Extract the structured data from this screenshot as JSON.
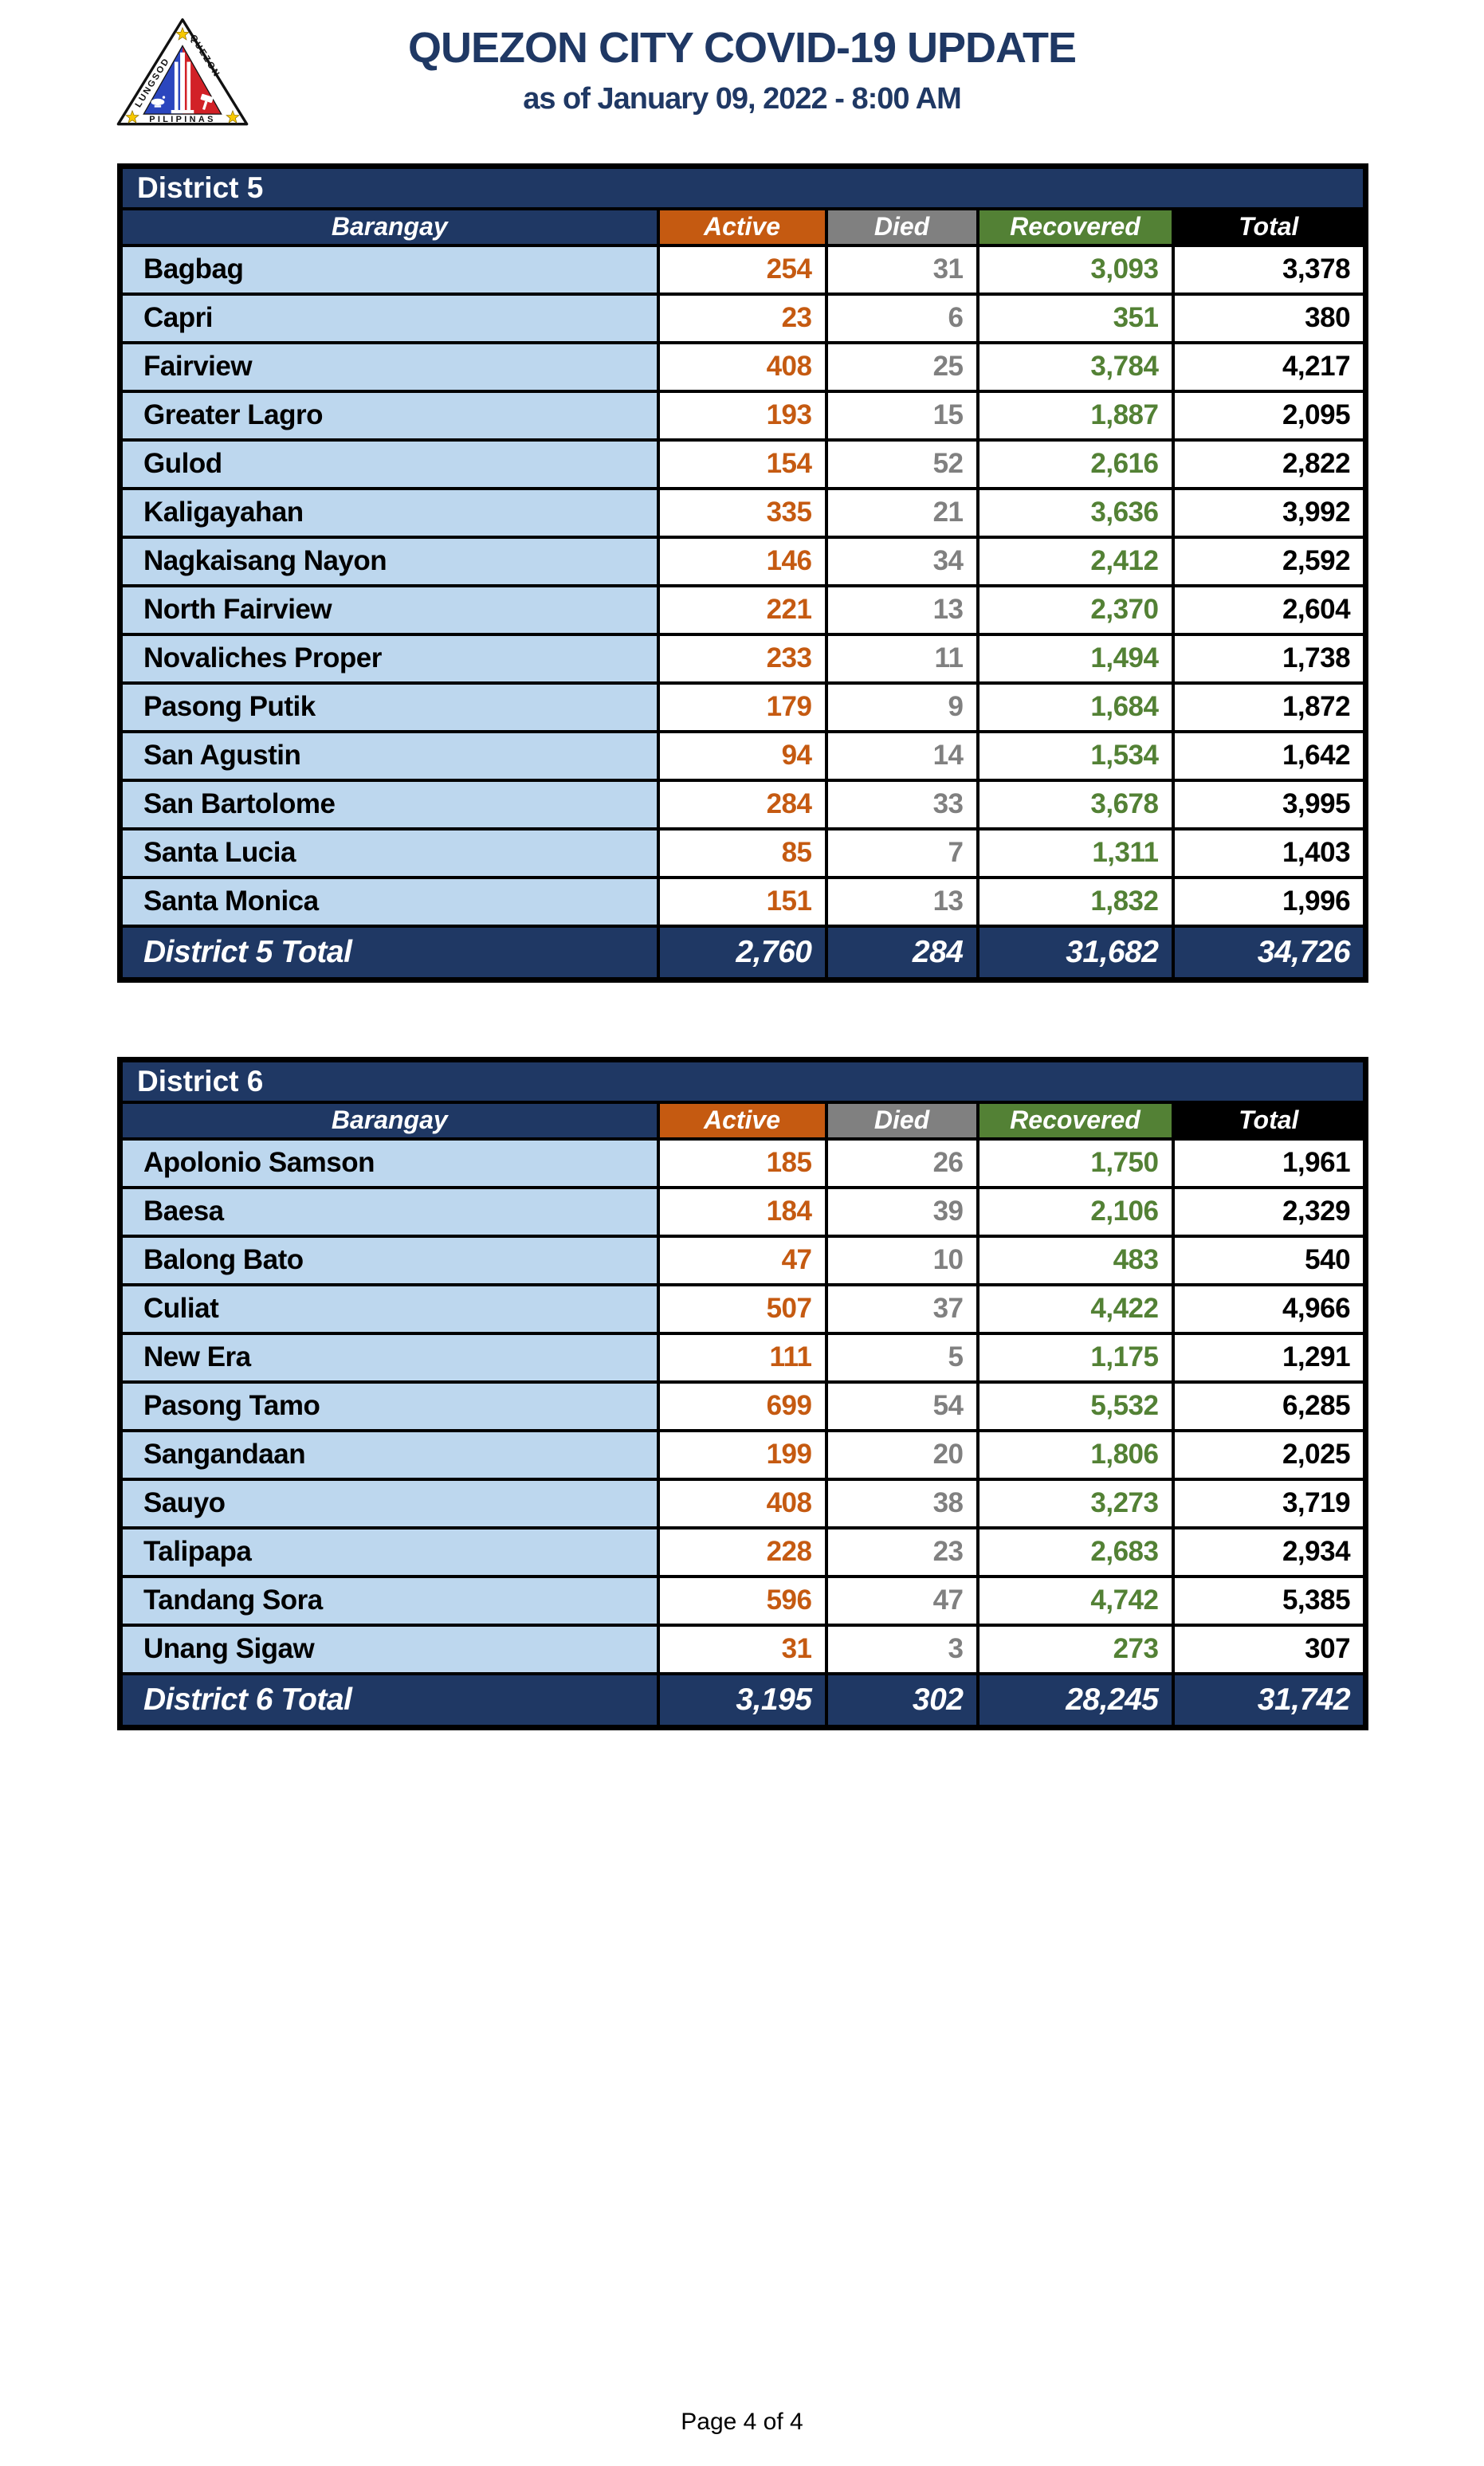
{
  "header": {
    "title": "QUEZON CITY COVID-19 UPDATE",
    "subtitle": "as of January 09, 2022 - 8:00 AM"
  },
  "logo": {
    "label": "Quezon City seal",
    "arc_left": "LUNGSOD",
    "arc_right": "QUEZON",
    "bottom": "PILIPINAS"
  },
  "columns": [
    "Barangay",
    "Active",
    "Died",
    "Recovered",
    "Total"
  ],
  "colors": {
    "navy": "#1F3864",
    "orange": "#C55A11",
    "gray": "#808080",
    "green": "#538135",
    "black": "#000000",
    "light_blue": "#BDD7EE"
  },
  "tables": [
    {
      "district": "District 5",
      "rows": [
        {
          "barangay": "Bagbag",
          "active": "254",
          "died": "31",
          "recovered": "3,093",
          "total": "3,378"
        },
        {
          "barangay": "Capri",
          "active": "23",
          "died": "6",
          "recovered": "351",
          "total": "380"
        },
        {
          "barangay": "Fairview",
          "active": "408",
          "died": "25",
          "recovered": "3,784",
          "total": "4,217"
        },
        {
          "barangay": "Greater Lagro",
          "active": "193",
          "died": "15",
          "recovered": "1,887",
          "total": "2,095"
        },
        {
          "barangay": "Gulod",
          "active": "154",
          "died": "52",
          "recovered": "2,616",
          "total": "2,822"
        },
        {
          "barangay": "Kaligayahan",
          "active": "335",
          "died": "21",
          "recovered": "3,636",
          "total": "3,992"
        },
        {
          "barangay": "Nagkaisang Nayon",
          "active": "146",
          "died": "34",
          "recovered": "2,412",
          "total": "2,592"
        },
        {
          "barangay": "North Fairview",
          "active": "221",
          "died": "13",
          "recovered": "2,370",
          "total": "2,604"
        },
        {
          "barangay": "Novaliches Proper",
          "active": "233",
          "died": "11",
          "recovered": "1,494",
          "total": "1,738"
        },
        {
          "barangay": "Pasong Putik",
          "active": "179",
          "died": "9",
          "recovered": "1,684",
          "total": "1,872"
        },
        {
          "barangay": "San Agustin",
          "active": "94",
          "died": "14",
          "recovered": "1,534",
          "total": "1,642"
        },
        {
          "barangay": "San Bartolome",
          "active": "284",
          "died": "33",
          "recovered": "3,678",
          "total": "3,995"
        },
        {
          "barangay": "Santa Lucia",
          "active": "85",
          "died": "7",
          "recovered": "1,311",
          "total": "1,403"
        },
        {
          "barangay": "Santa Monica",
          "active": "151",
          "died": "13",
          "recovered": "1,832",
          "total": "1,996"
        }
      ],
      "total": {
        "label": "District 5 Total",
        "active": "2,760",
        "died": "284",
        "recovered": "31,682",
        "total": "34,726"
      }
    },
    {
      "district": "District 6",
      "rows": [
        {
          "barangay": "Apolonio Samson",
          "active": "185",
          "died": "26",
          "recovered": "1,750",
          "total": "1,961"
        },
        {
          "barangay": "Baesa",
          "active": "184",
          "died": "39",
          "recovered": "2,106",
          "total": "2,329"
        },
        {
          "barangay": "Balong Bato",
          "active": "47",
          "died": "10",
          "recovered": "483",
          "total": "540"
        },
        {
          "barangay": "Culiat",
          "active": "507",
          "died": "37",
          "recovered": "4,422",
          "total": "4,966"
        },
        {
          "barangay": "New Era",
          "active": "111",
          "died": "5",
          "recovered": "1,175",
          "total": "1,291"
        },
        {
          "barangay": "Pasong Tamo",
          "active": "699",
          "died": "54",
          "recovered": "5,532",
          "total": "6,285"
        },
        {
          "barangay": "Sangandaan",
          "active": "199",
          "died": "20",
          "recovered": "1,806",
          "total": "2,025"
        },
        {
          "barangay": "Sauyo",
          "active": "408",
          "died": "38",
          "recovered": "3,273",
          "total": "3,719"
        },
        {
          "barangay": "Talipapa",
          "active": "228",
          "died": "23",
          "recovered": "2,683",
          "total": "2,934"
        },
        {
          "barangay": "Tandang Sora",
          "active": "596",
          "died": "47",
          "recovered": "4,742",
          "total": "5,385"
        },
        {
          "barangay": "Unang Sigaw",
          "active": "31",
          "died": "3",
          "recovered": "273",
          "total": "307"
        }
      ],
      "total": {
        "label": "District 6 Total",
        "active": "3,195",
        "died": "302",
        "recovered": "28,245",
        "total": "31,742"
      }
    }
  ],
  "footer": {
    "page_label": "Page 4 of 4"
  }
}
